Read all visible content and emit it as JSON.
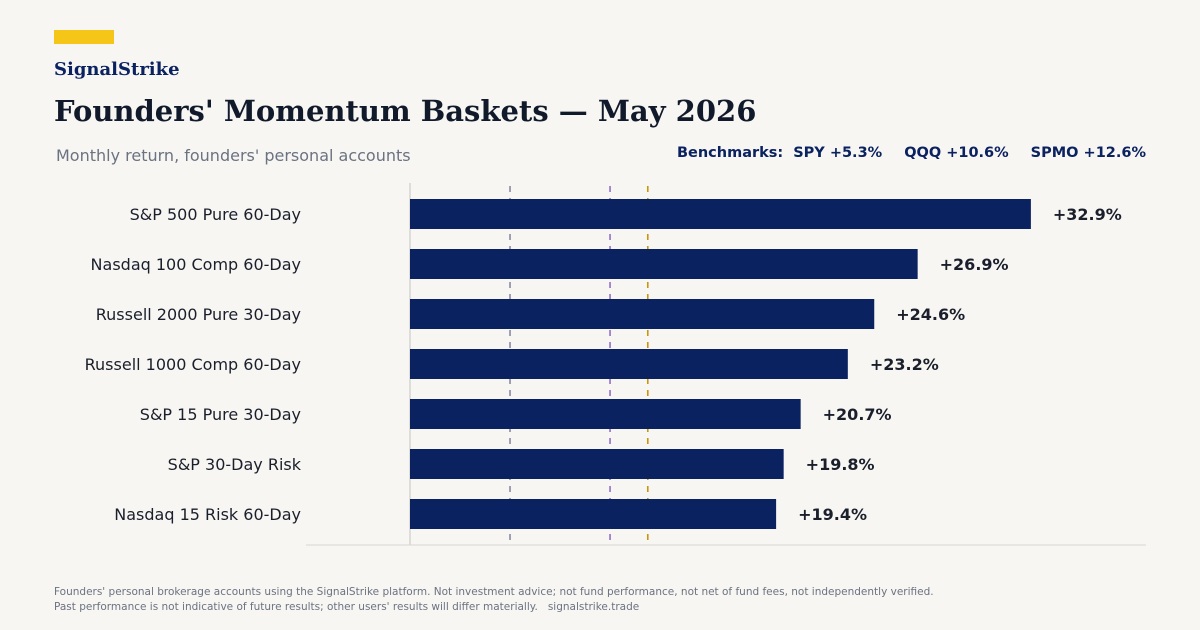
{
  "brand": {
    "name": "SignalStrike",
    "accent_color": "#f5c518"
  },
  "header": {
    "title": "Founders' Momentum Baskets — May 2026",
    "subtitle": "Monthly return, founders' personal accounts"
  },
  "benchmarks": {
    "label": "Benchmarks:",
    "items": [
      {
        "name": "SPY",
        "text": "SPY +5.3%",
        "value": 5.3,
        "color": "#8a8aa0"
      },
      {
        "name": "QQQ",
        "text": "QQQ +10.6%",
        "value": 10.6,
        "color": "#9370c8"
      },
      {
        "name": "SPMO",
        "text": "SPMO +12.6%",
        "value": 12.6,
        "color": "#c9950c"
      }
    ]
  },
  "chart_data": {
    "type": "bar",
    "orientation": "horizontal",
    "categories": [
      "S&P 500 Pure 60-Day",
      "Nasdaq 100 Comp 60-Day",
      "Russell 2000 Pure 30-Day",
      "Russell 1000 Comp 60-Day",
      "S&P 15 Pure 30-Day",
      "S&P 30-Day Risk",
      "Nasdaq 15 Risk 60-Day"
    ],
    "values": [
      32.9,
      26.9,
      24.6,
      23.2,
      20.7,
      19.8,
      19.4
    ],
    "value_labels": [
      "+32.9%",
      "+26.9%",
      "+24.6%",
      "+23.2%",
      "+20.7%",
      "+19.8%",
      "+19.4%"
    ],
    "xlim": [
      0,
      39
    ],
    "bar_color": "#0b2260",
    "grid": false,
    "reference_lines": [
      {
        "name": "SPY",
        "value": 5.3,
        "color": "#8a8aa0"
      },
      {
        "name": "QQQ",
        "value": 10.6,
        "color": "#9370c8"
      },
      {
        "name": "SPMO",
        "value": 12.6,
        "color": "#c9950c"
      }
    ]
  },
  "footer": {
    "line1": "Founders' personal brokerage accounts using the SignalStrike platform. Not investment advice; not fund performance, not net of fund fees, not independently verified.",
    "line2": "Past performance is not indicative of future results; other users' results will differ materially.",
    "url": "signalstrike.trade"
  }
}
